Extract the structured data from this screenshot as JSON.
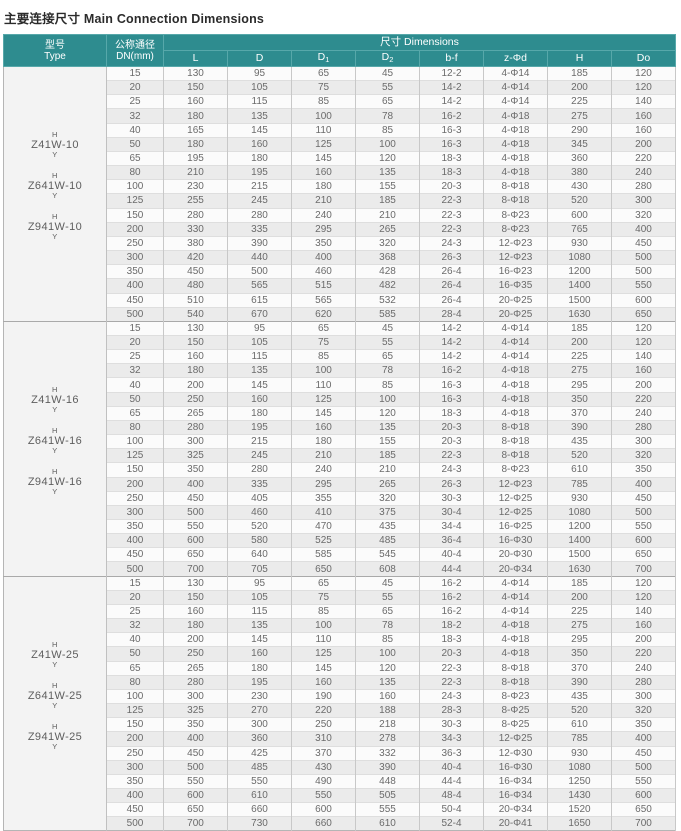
{
  "title": "主要连接尺寸 Main Connection Dimensions",
  "colors": {
    "header_bg": "#2e8c8f",
    "header_text": "#ffffff",
    "row_light": "#fbfbfb",
    "row_dark": "#ebebeb",
    "type_col_bg": "#f3f3f3",
    "body_text": "#6b6b6b"
  },
  "table": {
    "col_headers": {
      "type_line1": "型号",
      "type_line2": "Type",
      "dn_line1": "公称通径",
      "dn_line2": "DN(mm)",
      "dims_group": "尺寸 Dimensions",
      "dims": [
        {
          "text": "L"
        },
        {
          "text": "D"
        },
        {
          "text": "D",
          "sub": "1"
        },
        {
          "text": "D",
          "sub": "2"
        },
        {
          "text": "b-f"
        },
        {
          "text": "z-Φd"
        },
        {
          "text": "H"
        },
        {
          "text": "Do"
        }
      ]
    },
    "sections": [
      {
        "models": [
          {
            "variant_top": "H",
            "name": "Z41W-10",
            "variant_bottom": "Y"
          },
          {
            "variant_top": "H",
            "name": "Z641W-10",
            "variant_bottom": "Y"
          },
          {
            "variant_top": "H",
            "name": "Z941W-10",
            "variant_bottom": "Y"
          }
        ],
        "rows": [
          [
            15,
            130,
            95,
            65,
            45,
            "12-2",
            "4-Φ14",
            185,
            120
          ],
          [
            20,
            150,
            105,
            75,
            55,
            "14-2",
            "4-Φ14",
            200,
            120
          ],
          [
            25,
            160,
            115,
            85,
            65,
            "14-2",
            "4-Φ14",
            225,
            140
          ],
          [
            32,
            180,
            135,
            100,
            78,
            "16-2",
            "4-Φ18",
            275,
            160
          ],
          [
            40,
            165,
            145,
            110,
            85,
            "16-3",
            "4-Φ18",
            290,
            160
          ],
          [
            50,
            180,
            160,
            125,
            100,
            "16-3",
            "4-Φ18",
            345,
            200
          ],
          [
            65,
            195,
            180,
            145,
            120,
            "18-3",
            "4-Φ18",
            360,
            220
          ],
          [
            80,
            210,
            195,
            160,
            135,
            "18-3",
            "4-Φ18",
            380,
            240
          ],
          [
            100,
            230,
            215,
            180,
            155,
            "20-3",
            "8-Φ18",
            430,
            280
          ],
          [
            125,
            255,
            245,
            210,
            185,
            "22-3",
            "8-Φ18",
            520,
            300
          ],
          [
            150,
            280,
            280,
            240,
            210,
            "22-3",
            "8-Φ23",
            600,
            320
          ],
          [
            200,
            330,
            335,
            295,
            265,
            "22-3",
            "8-Φ23",
            765,
            400
          ],
          [
            250,
            380,
            390,
            350,
            320,
            "24-3",
            "12-Φ23",
            930,
            450
          ],
          [
            300,
            420,
            440,
            400,
            368,
            "26-3",
            "12-Φ23",
            1080,
            500
          ],
          [
            350,
            450,
            500,
            460,
            428,
            "26-4",
            "16-Φ23",
            1200,
            500
          ],
          [
            400,
            480,
            565,
            515,
            482,
            "26-4",
            "16-Φ35",
            1400,
            550
          ],
          [
            450,
            510,
            615,
            565,
            532,
            "26-4",
            "20-Φ25",
            1500,
            600
          ],
          [
            500,
            540,
            670,
            620,
            585,
            "28-4",
            "20-Φ25",
            1630,
            650
          ]
        ]
      },
      {
        "models": [
          {
            "variant_top": "H",
            "name": "Z41W-16",
            "variant_bottom": "Y"
          },
          {
            "variant_top": "H",
            "name": "Z641W-16",
            "variant_bottom": "Y"
          },
          {
            "variant_top": "H",
            "name": "Z941W-16",
            "variant_bottom": "Y"
          }
        ],
        "rows": [
          [
            15,
            130,
            95,
            65,
            45,
            "14-2",
            "4-Φ14",
            185,
            120
          ],
          [
            20,
            150,
            105,
            75,
            55,
            "14-2",
            "4-Φ14",
            200,
            120
          ],
          [
            25,
            160,
            115,
            85,
            65,
            "14-2",
            "4-Φ14",
            225,
            140
          ],
          [
            32,
            180,
            135,
            100,
            78,
            "16-2",
            "4-Φ18",
            275,
            160
          ],
          [
            40,
            200,
            145,
            110,
            85,
            "16-3",
            "4-Φ18",
            295,
            200
          ],
          [
            50,
            250,
            160,
            125,
            100,
            "16-3",
            "4-Φ18",
            350,
            220
          ],
          [
            65,
            265,
            180,
            145,
            120,
            "18-3",
            "4-Φ18",
            370,
            240
          ],
          [
            80,
            280,
            195,
            160,
            135,
            "20-3",
            "8-Φ18",
            390,
            280
          ],
          [
            100,
            300,
            215,
            180,
            155,
            "20-3",
            "8-Φ18",
            435,
            300
          ],
          [
            125,
            325,
            245,
            210,
            185,
            "22-3",
            "8-Φ18",
            520,
            320
          ],
          [
            150,
            350,
            280,
            240,
            210,
            "24-3",
            "8-Φ23",
            610,
            350
          ],
          [
            200,
            400,
            335,
            295,
            265,
            "26-3",
            "12-Φ23",
            785,
            400
          ],
          [
            250,
            450,
            405,
            355,
            320,
            "30-3",
            "12-Φ25",
            930,
            450
          ],
          [
            300,
            500,
            460,
            410,
            375,
            "30-4",
            "12-Φ25",
            1080,
            500
          ],
          [
            350,
            550,
            520,
            470,
            435,
            "34-4",
            "16-Φ25",
            1200,
            550
          ],
          [
            400,
            600,
            580,
            525,
            485,
            "36-4",
            "16-Φ30",
            1400,
            600
          ],
          [
            450,
            650,
            640,
            585,
            545,
            "40-4",
            "20-Φ30",
            1500,
            650
          ],
          [
            500,
            700,
            705,
            650,
            608,
            "44-4",
            "20-Φ34",
            1630,
            700
          ]
        ]
      },
      {
        "models": [
          {
            "variant_top": "H",
            "name": "Z41W-25",
            "variant_bottom": "Y"
          },
          {
            "variant_top": "H",
            "name": "Z641W-25",
            "variant_bottom": "Y"
          },
          {
            "variant_top": "H",
            "name": "Z941W-25",
            "variant_bottom": "Y"
          }
        ],
        "rows": [
          [
            15,
            130,
            95,
            65,
            45,
            "16-2",
            "4-Φ14",
            185,
            120
          ],
          [
            20,
            150,
            105,
            75,
            55,
            "16-2",
            "4-Φ14",
            200,
            120
          ],
          [
            25,
            160,
            115,
            85,
            65,
            "16-2",
            "4-Φ14",
            225,
            140
          ],
          [
            32,
            180,
            135,
            100,
            78,
            "18-2",
            "4-Φ18",
            275,
            160
          ],
          [
            40,
            200,
            145,
            110,
            85,
            "18-3",
            "4-Φ18",
            295,
            200
          ],
          [
            50,
            250,
            160,
            125,
            100,
            "20-3",
            "4-Φ18",
            350,
            220
          ],
          [
            65,
            265,
            180,
            145,
            120,
            "22-3",
            "8-Φ18",
            370,
            240
          ],
          [
            80,
            280,
            195,
            160,
            135,
            "22-3",
            "8-Φ18",
            390,
            280
          ],
          [
            100,
            300,
            230,
            190,
            160,
            "24-3",
            "8-Φ23",
            435,
            300
          ],
          [
            125,
            325,
            270,
            220,
            188,
            "28-3",
            "8-Φ25",
            520,
            320
          ],
          [
            150,
            350,
            300,
            250,
            218,
            "30-3",
            "8-Φ25",
            610,
            350
          ],
          [
            200,
            400,
            360,
            310,
            278,
            "34-3",
            "12-Φ25",
            785,
            400
          ],
          [
            250,
            450,
            425,
            370,
            332,
            "36-3",
            "12-Φ30",
            930,
            450
          ],
          [
            300,
            500,
            485,
            430,
            390,
            "40-4",
            "16-Φ30",
            1080,
            500
          ],
          [
            350,
            550,
            550,
            490,
            448,
            "44-4",
            "16-Φ34",
            1250,
            550
          ],
          [
            400,
            600,
            610,
            550,
            505,
            "48-4",
            "16-Φ34",
            1430,
            600
          ],
          [
            450,
            650,
            660,
            600,
            555,
            "50-4",
            "20-Φ34",
            1520,
            650
          ],
          [
            500,
            700,
            730,
            660,
            610,
            "52-4",
            "20-Φ41",
            1650,
            700
          ]
        ]
      }
    ]
  }
}
